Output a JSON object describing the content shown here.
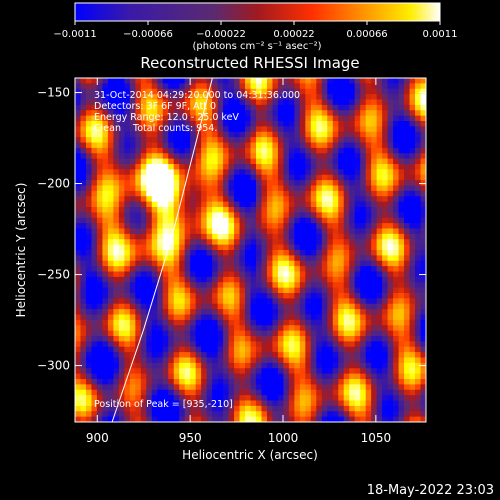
{
  "chart_data": {
    "type": "heatmap",
    "title": "Reconstructed RHESSI Image",
    "xlabel": "Heliocentric X (arcsec)",
    "ylabel": "Heliocentric Y (arcsec)",
    "xlim": [
      888,
      1077
    ],
    "ylim": [
      -331,
      -142
    ],
    "x_ticks": [
      {
        "value": 900,
        "label": "900"
      },
      {
        "value": 950,
        "label": "950"
      },
      {
        "value": 1000,
        "label": "1000"
      },
      {
        "value": 1050,
        "label": "1050"
      }
    ],
    "y_ticks": [
      {
        "value": -150,
        "label": "−150"
      },
      {
        "value": -200,
        "label": "−200"
      },
      {
        "value": -250,
        "label": "−250"
      },
      {
        "value": -300,
        "label": "−300"
      }
    ],
    "colorbar": {
      "range": [
        -0.0011,
        0.0011
      ],
      "ticks": [
        {
          "value": -0.0011,
          "label": "−0.0011"
        },
        {
          "value": -0.00066,
          "label": "−0.00066"
        },
        {
          "value": -0.00022,
          "label": "−0.00022"
        },
        {
          "value": 0.00022,
          "label": "0.00022"
        },
        {
          "value": 0.00066,
          "label": "0.00066"
        },
        {
          "value": 0.0011,
          "label": "0.0011"
        }
      ],
      "unit_label": "(photons cm⁻² s⁻¹ asec⁻²)",
      "colormap": [
        "#0000ff",
        "#3c1aa0",
        "#5a2a78",
        "#b01818",
        "#ff4000",
        "#ffa000",
        "#ffff00",
        "#ffffff"
      ]
    },
    "annotations": [
      "31-Oct-2014 04:29:20.000 to 04:31:36.000",
      "Detectors: 3F 6F 9F, Att 0",
      "Energy Range: 12.0 - 25.0 keV",
      "Clean    Total counts: 954."
    ],
    "peak_label": "Position of Peak = [935,-210]",
    "peak": [
      935,
      -210
    ],
    "limb_curve": [
      [
        908,
        -331
      ],
      [
        925,
        -280
      ],
      [
        940,
        -230
      ],
      [
        950,
        -190
      ],
      [
        962,
        -142
      ]
    ]
  },
  "footer_timestamp": "18-May-2022 23:03"
}
